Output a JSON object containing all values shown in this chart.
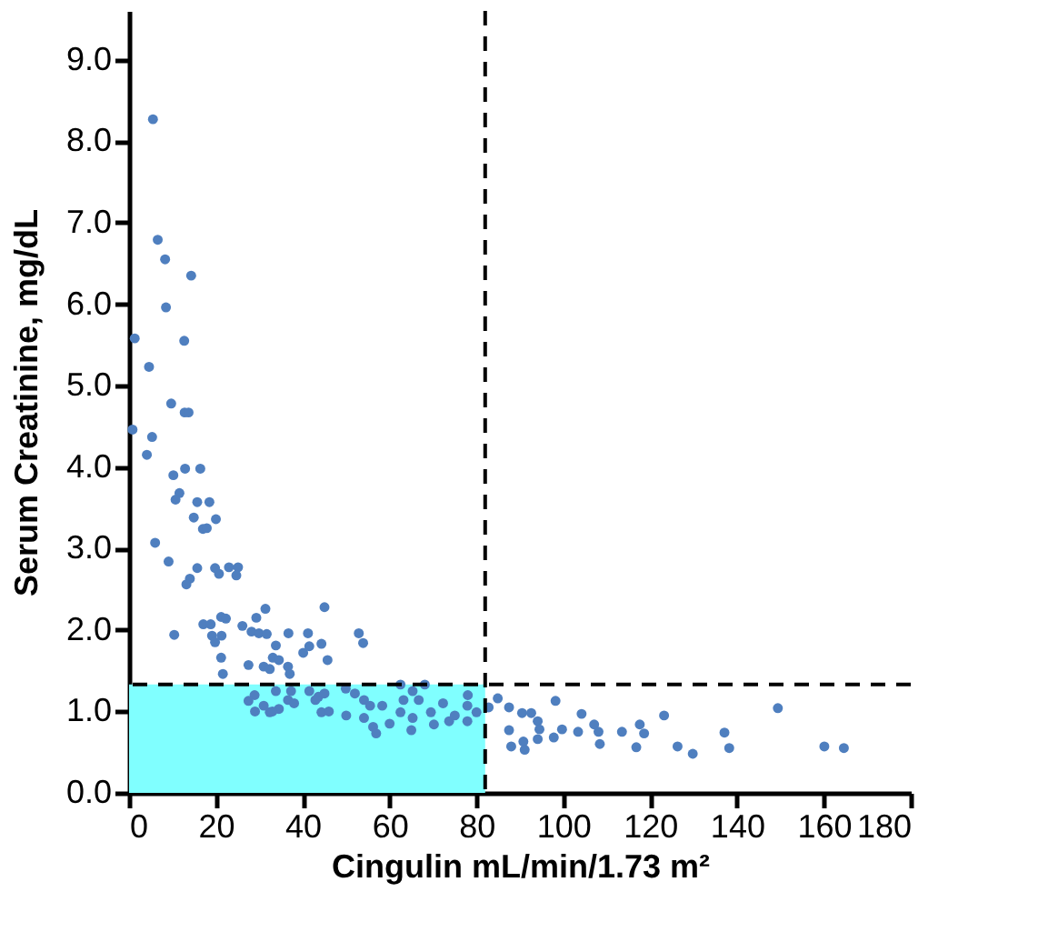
{
  "chart_data": {
    "type": "scatter",
    "xlabel": "Cingulin mL/min/1.73 m²",
    "ylabel": "Serum Creatinine, mg/dL",
    "x": [
      5.5,
      6.6,
      8.3,
      14.3,
      8.5,
      1.3,
      12.7,
      4.6,
      9.7,
      12.8,
      13.7,
      0.8,
      5.3,
      4.1,
      12.9,
      16.4,
      10.2,
      11.6,
      10.7,
      15.7,
      18.5,
      14.9,
      20.0,
      17.0,
      17.9,
      6.0,
      9.1,
      15.7,
      19.8,
      20.7,
      14.0,
      13.2,
      23.0,
      25.1,
      24.7,
      31.4,
      29.3,
      17.1,
      18.8,
      21.2,
      22.3,
      10.4,
      19.1,
      21.3,
      26.1,
      28.2,
      29.9,
      31.7,
      36.7,
      41.2,
      45.0,
      52.9,
      53.9,
      40.1,
      41.5,
      44.3,
      45.7,
      33.8,
      33.1,
      34.5,
      31.0,
      32.4,
      36.6,
      37.0,
      27.5,
      21.2,
      21.6,
      19.8,
      28.9,
      27.5,
      31.0,
      32.4,
      34.5,
      33.8,
      37.3,
      36.6,
      41.5,
      43.6,
      42.9,
      45.0,
      44.3,
      49.9,
      52.0,
      54.1,
      55.5,
      58.3,
      54.1,
      56.2,
      56.9,
      62.5,
      65.3,
      68.1,
      63.2,
      66.7,
      62.5,
      65.3,
      65.0,
      69.5,
      72.3,
      73.7,
      70.2,
      77.9,
      77.9,
      80.0,
      29,
      33,
      38,
      46,
      50,
      60,
      75,
      78,
      82.8,
      84.9,
      87.5,
      90.5,
      92.6,
      94.1,
      94.5,
      87.5,
      88.0,
      90.8,
      91.1,
      94.1,
      98.2,
      97.8,
      99.7,
      103.4,
      104.2,
      107.1,
      108.1,
      108.4,
      113.5,
      116.8,
      117.6,
      118.6,
      123.2,
      126.3,
      129.8,
      137.1,
      138.2,
      149.4,
      160.1,
      164.6
    ],
    "series": [
      {
        "color": "#4f7fbf",
        "values": [
          8.27,
          6.79,
          6.55,
          6.35,
          5.96,
          5.58,
          5.55,
          5.23,
          4.78,
          4.67,
          4.67,
          4.46,
          4.37,
          4.15,
          3.98,
          3.98,
          3.9,
          3.68,
          3.6,
          3.57,
          3.57,
          3.38,
          3.36,
          3.24,
          3.25,
          3.07,
          2.84,
          2.76,
          2.76,
          2.69,
          2.63,
          2.56,
          2.77,
          2.77,
          2.67,
          2.26,
          2.15,
          2.07,
          2.07,
          2.16,
          2.14,
          1.94,
          1.93,
          1.93,
          2.05,
          1.98,
          1.96,
          1.95,
          1.96,
          1.96,
          2.28,
          1.96,
          1.84,
          1.72,
          1.8,
          1.83,
          1.63,
          1.81,
          1.66,
          1.63,
          1.55,
          1.52,
          1.55,
          1.46,
          1.57,
          1.66,
          1.46,
          1.85,
          1.2,
          1.13,
          1.07,
          0.99,
          1.03,
          1.25,
          1.25,
          1.14,
          1.25,
          1.18,
          1.14,
          1.22,
          0.99,
          1.28,
          1.22,
          1.14,
          1.07,
          1.07,
          0.92,
          0.81,
          0.73,
          1.33,
          1.25,
          1.33,
          1.14,
          1.14,
          0.99,
          0.92,
          0.77,
          0.99,
          1.1,
          0.88,
          0.84,
          1.07,
          0.88,
          0.99,
          1.0,
          1.0,
          1.1,
          1.0,
          0.95,
          0.85,
          0.95,
          1.2,
          1.05,
          1.16,
          1.05,
          0.98,
          0.98,
          0.88,
          0.78,
          0.77,
          0.57,
          0.63,
          0.53,
          0.66,
          1.13,
          0.68,
          0.78,
          0.75,
          0.97,
          0.84,
          0.75,
          0.6,
          0.75,
          0.56,
          0.84,
          0.73,
          0.95,
          0.57,
          0.48,
          0.74,
          0.55,
          1.04,
          0.57,
          0.55
        ]
      }
    ],
    "xlim": [
      0,
      180
    ],
    "xticks": [
      0,
      20,
      40,
      60,
      80,
      100,
      120,
      140,
      160,
      180
    ],
    "ylim": [
      0,
      9.6
    ],
    "yticks": [
      {
        "value": 0,
        "label": "0.0"
      },
      {
        "value": 1,
        "label": "1.0"
      },
      {
        "value": 2,
        "label": "2.0"
      },
      {
        "value": 3,
        "label": "3.0"
      },
      {
        "value": 4,
        "label": "4.0"
      },
      {
        "value": 5,
        "label": "5.0"
      },
      {
        "value": 6,
        "label": "6.0"
      },
      {
        "value": 7,
        "label": "7.0"
      },
      {
        "value": 8,
        "label": "8.0"
      },
      {
        "value": 9,
        "label": "9.0"
      }
    ],
    "ref_lines": [
      {
        "axis": "x",
        "value": 82,
        "line_style": "dashed",
        "color": "#000000"
      },
      {
        "axis": "y",
        "value": 1.33,
        "line_style": "dashed",
        "color": "#000000"
      }
    ],
    "bands": [
      {
        "axis": "x",
        "from": 0,
        "to": 82,
        "color": "#80ffff"
      }
    ],
    "marker": "circle",
    "grid": false
  }
}
